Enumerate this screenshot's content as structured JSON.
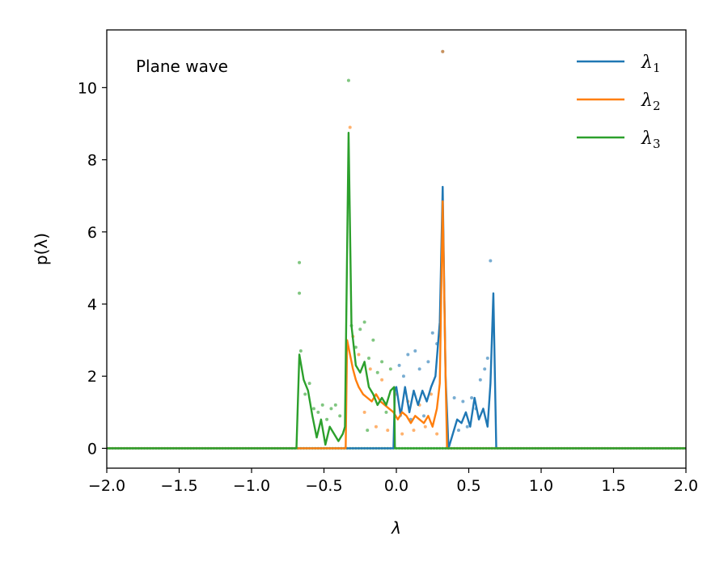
{
  "chart_data": {
    "type": "line",
    "title": "",
    "annotation": "Plane wave",
    "xlabel": "λ",
    "ylabel": "p(λ)",
    "xlim": [
      -2.0,
      2.0
    ],
    "ylim": [
      -0.55,
      11.6
    ],
    "xticks": [
      -2.0,
      -1.5,
      -1.0,
      -0.5,
      0.0,
      0.5,
      1.0,
      1.5,
      2.0
    ],
    "xtick_labels": [
      "−2.0",
      "−1.5",
      "−1.0",
      "−0.5",
      "0.0",
      "0.5",
      "1.0",
      "1.5",
      "2.0"
    ],
    "yticks": [
      0,
      2,
      4,
      6,
      8,
      10
    ],
    "ytick_labels": [
      "0",
      "2",
      "4",
      "6",
      "8",
      "10"
    ],
    "grid": false,
    "legend_position": "top-right",
    "series": [
      {
        "name": "λ",
        "subscript": "1",
        "color": "#1f77b4",
        "x": [
          -2.0,
          -0.02,
          -0.01,
          0.0,
          0.03,
          0.06,
          0.09,
          0.12,
          0.15,
          0.18,
          0.21,
          0.24,
          0.27,
          0.3,
          0.32,
          0.34,
          0.36,
          0.39,
          0.42,
          0.45,
          0.48,
          0.51,
          0.54,
          0.57,
          0.6,
          0.63,
          0.65,
          0.67,
          0.69,
          2.0
        ],
        "y": [
          0,
          0,
          1.6,
          1.7,
          0.9,
          1.7,
          1.0,
          1.6,
          1.2,
          1.6,
          1.3,
          1.7,
          2.0,
          3.5,
          7.25,
          2.0,
          0.0,
          0.4,
          0.8,
          0.7,
          1.0,
          0.6,
          1.4,
          0.8,
          1.1,
          0.6,
          1.8,
          4.3,
          0.0,
          0
        ]
      },
      {
        "name": "λ",
        "subscript": "2",
        "color": "#ff7f0e",
        "x": [
          -2.0,
          -0.35,
          -0.34,
          -0.32,
          -0.3,
          -0.28,
          -0.26,
          -0.23,
          -0.2,
          -0.17,
          -0.14,
          -0.11,
          -0.08,
          -0.05,
          -0.02,
          0.01,
          0.04,
          0.07,
          0.1,
          0.13,
          0.16,
          0.19,
          0.22,
          0.25,
          0.28,
          0.3,
          0.32,
          0.34,
          0.35,
          2.0
        ],
        "y": [
          0,
          0,
          3.0,
          2.6,
          2.2,
          1.9,
          1.7,
          1.5,
          1.4,
          1.3,
          1.5,
          1.3,
          1.2,
          1.1,
          1.0,
          0.8,
          1.0,
          0.9,
          0.7,
          0.9,
          0.8,
          0.7,
          0.9,
          0.6,
          1.1,
          1.8,
          6.85,
          2.0,
          0.0,
          0
        ]
      },
      {
        "name": "λ",
        "subscript": "3",
        "color": "#2ca02c",
        "x": [
          -2.0,
          -0.69,
          -0.67,
          -0.64,
          -0.61,
          -0.58,
          -0.55,
          -0.52,
          -0.49,
          -0.46,
          -0.43,
          -0.4,
          -0.37,
          -0.355,
          -0.33,
          -0.31,
          -0.28,
          -0.25,
          -0.22,
          -0.19,
          -0.16,
          -0.13,
          -0.1,
          -0.07,
          -0.04,
          -0.015,
          -0.01,
          2.0
        ],
        "y": [
          0,
          0,
          2.6,
          1.9,
          1.6,
          0.9,
          0.3,
          0.8,
          0.1,
          0.6,
          0.4,
          0.2,
          0.4,
          0.6,
          8.75,
          3.4,
          2.3,
          2.1,
          2.4,
          1.7,
          1.5,
          1.2,
          1.4,
          1.2,
          1.6,
          1.7,
          0.0,
          0
        ]
      }
    ],
    "scatter_points": [
      {
        "x": 0.02,
        "y": 2.3,
        "series": 0
      },
      {
        "x": 0.05,
        "y": 2.0,
        "series": 0
      },
      {
        "x": 0.08,
        "y": 2.6,
        "series": 0
      },
      {
        "x": 0.1,
        "y": 0.8,
        "series": 0
      },
      {
        "x": 0.13,
        "y": 2.7,
        "series": 0
      },
      {
        "x": 0.16,
        "y": 2.2,
        "series": 0
      },
      {
        "x": 0.19,
        "y": 0.9,
        "series": 0
      },
      {
        "x": 0.22,
        "y": 2.4,
        "series": 0
      },
      {
        "x": 0.25,
        "y": 3.2,
        "series": 0
      },
      {
        "x": 0.28,
        "y": 2.9,
        "series": 0
      },
      {
        "x": 0.32,
        "y": 11.0,
        "series": 0
      },
      {
        "x": 0.4,
        "y": 1.4,
        "series": 0
      },
      {
        "x": 0.43,
        "y": 0.5,
        "series": 0
      },
      {
        "x": 0.46,
        "y": 1.3,
        "series": 0
      },
      {
        "x": 0.49,
        "y": 0.6,
        "series": 0
      },
      {
        "x": 0.52,
        "y": 1.4,
        "series": 0
      },
      {
        "x": 0.55,
        "y": 1.1,
        "series": 0
      },
      {
        "x": 0.58,
        "y": 1.9,
        "series": 0
      },
      {
        "x": 0.61,
        "y": 2.2,
        "series": 0
      },
      {
        "x": 0.65,
        "y": 5.2,
        "series": 0
      },
      {
        "x": 0.63,
        "y": 2.5,
        "series": 0
      },
      {
        "x": -0.32,
        "y": 8.9,
        "series": 1
      },
      {
        "x": -0.3,
        "y": 3.1,
        "series": 1
      },
      {
        "x": -0.26,
        "y": 2.6,
        "series": 1
      },
      {
        "x": -0.22,
        "y": 1.0,
        "series": 1
      },
      {
        "x": -0.18,
        "y": 2.2,
        "series": 1
      },
      {
        "x": -0.14,
        "y": 0.6,
        "series": 1
      },
      {
        "x": -0.1,
        "y": 1.9,
        "series": 1
      },
      {
        "x": -0.06,
        "y": 0.5,
        "series": 1
      },
      {
        "x": 0.0,
        "y": 1.5,
        "series": 1
      },
      {
        "x": 0.04,
        "y": 0.4,
        "series": 1
      },
      {
        "x": 0.08,
        "y": 1.3,
        "series": 1
      },
      {
        "x": 0.12,
        "y": 0.5,
        "series": 1
      },
      {
        "x": 0.16,
        "y": 1.2,
        "series": 1
      },
      {
        "x": 0.2,
        "y": 0.6,
        "series": 1
      },
      {
        "x": 0.24,
        "y": 1.5,
        "series": 1
      },
      {
        "x": 0.28,
        "y": 0.4,
        "series": 1
      },
      {
        "x": 0.32,
        "y": 11.0,
        "series": 1
      },
      {
        "x": -0.67,
        "y": 5.15,
        "series": 2
      },
      {
        "x": -0.67,
        "y": 4.3,
        "series": 2
      },
      {
        "x": -0.66,
        "y": 2.7,
        "series": 2
      },
      {
        "x": -0.63,
        "y": 1.5,
        "series": 2
      },
      {
        "x": -0.6,
        "y": 1.8,
        "series": 2
      },
      {
        "x": -0.57,
        "y": 1.1,
        "series": 2
      },
      {
        "x": -0.54,
        "y": 1.0,
        "series": 2
      },
      {
        "x": -0.51,
        "y": 1.2,
        "series": 2
      },
      {
        "x": -0.48,
        "y": 0.8,
        "series": 2
      },
      {
        "x": -0.45,
        "y": 1.1,
        "series": 2
      },
      {
        "x": -0.42,
        "y": 1.2,
        "series": 2
      },
      {
        "x": -0.39,
        "y": 0.9,
        "series": 2
      },
      {
        "x": -0.33,
        "y": 10.2,
        "series": 2
      },
      {
        "x": -0.31,
        "y": 3.4,
        "series": 2
      },
      {
        "x": -0.28,
        "y": 2.8,
        "series": 2
      },
      {
        "x": -0.25,
        "y": 3.3,
        "series": 2
      },
      {
        "x": -0.22,
        "y": 3.5,
        "series": 2
      },
      {
        "x": -0.19,
        "y": 2.5,
        "series": 2
      },
      {
        "x": -0.16,
        "y": 3.0,
        "series": 2
      },
      {
        "x": -0.13,
        "y": 2.1,
        "series": 2
      },
      {
        "x": -0.1,
        "y": 2.4,
        "series": 2
      },
      {
        "x": -0.07,
        "y": 1.0,
        "series": 2
      },
      {
        "x": -0.04,
        "y": 2.2,
        "series": 2
      },
      {
        "x": -0.2,
        "y": 0.5,
        "series": 2
      }
    ]
  }
}
